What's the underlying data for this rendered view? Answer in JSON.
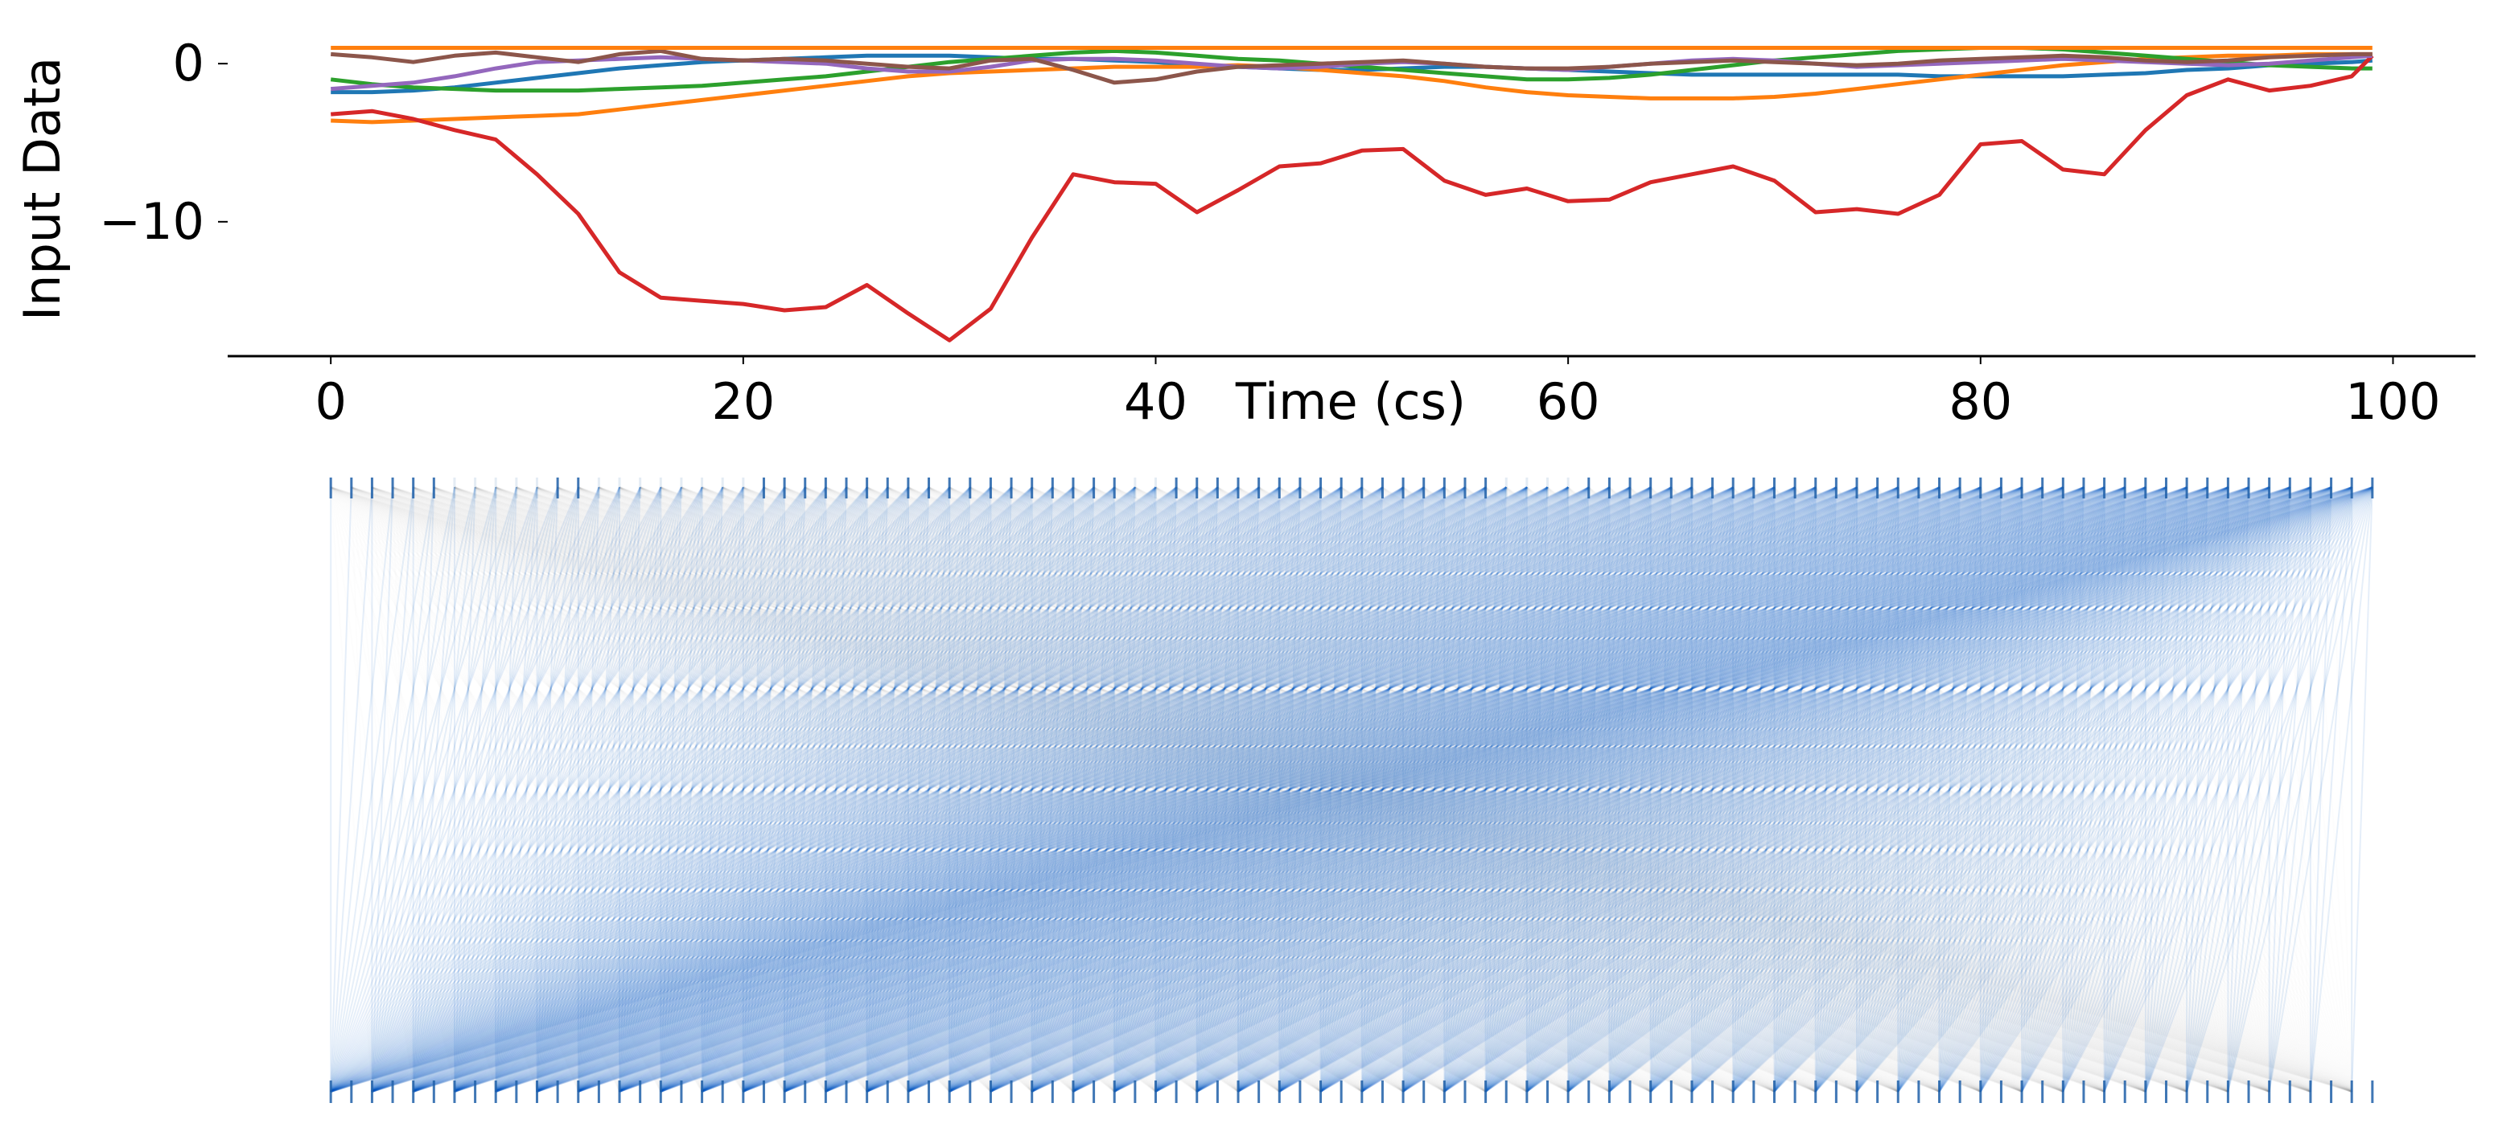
{
  "chart_data": [
    {
      "type": "line",
      "title": "",
      "xlabel": "Time (cs)",
      "ylabel": "Input Data",
      "xlim": [
        -5,
        104
      ],
      "ylim": [
        -18.5,
        2.5
      ],
      "xticks": [
        0,
        20,
        40,
        60,
        80,
        100
      ],
      "yticks": [
        0,
        -10
      ],
      "x_tick_labels": [
        "0",
        "20",
        "40",
        "60",
        "80",
        "100"
      ],
      "y_tick_labels": [
        "0",
        "−10"
      ],
      "x": [
        0,
        2,
        4,
        6,
        8,
        10,
        12,
        14,
        16,
        18,
        20,
        22,
        24,
        26,
        28,
        30,
        32,
        34,
        36,
        38,
        40,
        42,
        44,
        46,
        48,
        50,
        52,
        54,
        56,
        58,
        60,
        62,
        64,
        66,
        68,
        70,
        72,
        74,
        76,
        78,
        80,
        82,
        84,
        86,
        88,
        90,
        92,
        94,
        96,
        98,
        99
      ],
      "series": [
        {
          "color": "#1f77b4",
          "values": [
            -1.8,
            -1.8,
            -1.7,
            -1.5,
            -1.2,
            -0.9,
            -0.6,
            -0.3,
            -0.1,
            0.1,
            0.2,
            0.3,
            0.4,
            0.5,
            0.5,
            0.5,
            0.4,
            0.3,
            0.3,
            0.2,
            0.1,
            -0.1,
            -0.2,
            -0.3,
            -0.4,
            -0.4,
            -0.3,
            -0.2,
            -0.2,
            -0.3,
            -0.4,
            -0.5,
            -0.6,
            -0.7,
            -0.7,
            -0.7,
            -0.7,
            -0.7,
            -0.7,
            -0.8,
            -0.8,
            -0.8,
            -0.8,
            -0.7,
            -0.6,
            -0.4,
            -0.3,
            -0.1,
            0.0,
            0.1,
            0.2
          ]
        },
        {
          "color": "#ff7f0e",
          "values": [
            -3.6,
            -3.7,
            -3.6,
            -3.5,
            -3.4,
            -3.3,
            -3.2,
            -2.9,
            -2.6,
            -2.3,
            -2.0,
            -1.7,
            -1.4,
            -1.1,
            -0.8,
            -0.6,
            -0.5,
            -0.4,
            -0.3,
            -0.2,
            -0.2,
            -0.2,
            -0.1,
            -0.2,
            -0.4,
            -0.6,
            -0.8,
            -1.1,
            -1.5,
            -1.8,
            -2.0,
            -2.1,
            -2.2,
            -2.2,
            -2.2,
            -2.1,
            -1.9,
            -1.6,
            -1.3,
            -1.0,
            -0.7,
            -0.4,
            -0.1,
            0.1,
            0.3,
            0.4,
            0.5,
            0.5,
            0.6,
            0.6,
            0.6
          ]
        },
        {
          "color": "#2ca02c",
          "values": [
            -1.0,
            -1.3,
            -1.5,
            -1.6,
            -1.7,
            -1.7,
            -1.7,
            -1.6,
            -1.5,
            -1.4,
            -1.2,
            -1.0,
            -0.8,
            -0.5,
            -0.2,
            0.1,
            0.3,
            0.5,
            0.7,
            0.8,
            0.7,
            0.5,
            0.3,
            0.2,
            0.0,
            -0.2,
            -0.4,
            -0.6,
            -0.8,
            -1.0,
            -1.0,
            -0.9,
            -0.7,
            -0.4,
            -0.1,
            0.2,
            0.4,
            0.6,
            0.8,
            0.9,
            1.0,
            1.0,
            0.9,
            0.7,
            0.5,
            0.3,
            0.1,
            -0.1,
            -0.2,
            -0.3,
            -0.3
          ]
        },
        {
          "color": "#d62728",
          "values": [
            -3.2,
            -3.0,
            -3.5,
            -4.2,
            -4.8,
            -7.0,
            -9.5,
            -13.2,
            -14.8,
            -15.0,
            -15.2,
            -15.6,
            -15.4,
            -14.0,
            -15.8,
            -17.5,
            -15.5,
            -11.0,
            -7.0,
            -7.5,
            -7.6,
            -9.4,
            -8.0,
            -6.5,
            -6.3,
            -5.5,
            -5.4,
            -7.4,
            -8.3,
            -7.9,
            -8.7,
            -8.6,
            -7.5,
            -7.0,
            -6.5,
            -7.4,
            -9.4,
            -9.2,
            -9.5,
            -8.3,
            -5.1,
            -4.9,
            -6.7,
            -7.0,
            -4.2,
            -2.0,
            -1.0,
            -1.7,
            -1.4,
            -0.8,
            0.5
          ]
        },
        {
          "color": "#9467bd",
          "values": [
            -1.6,
            -1.4,
            -1.2,
            -0.8,
            -0.3,
            0.1,
            0.2,
            0.3,
            0.4,
            0.3,
            0.2,
            0.1,
            0.0,
            -0.3,
            -0.5,
            -0.5,
            -0.2,
            0.2,
            0.3,
            0.3,
            0.2,
            0.0,
            -0.2,
            -0.3,
            -0.2,
            0.0,
            0.1,
            0.0,
            -0.2,
            -0.3,
            -0.4,
            -0.2,
            0.0,
            0.2,
            0.3,
            0.2,
            0.0,
            -0.2,
            -0.1,
            0.0,
            0.1,
            0.2,
            0.3,
            0.2,
            0.1,
            0.0,
            -0.1,
            0.0,
            0.2,
            0.4,
            0.5
          ]
        },
        {
          "color": "#8c564b",
          "values": [
            0.6,
            0.4,
            0.1,
            0.5,
            0.7,
            0.4,
            0.1,
            0.6,
            0.8,
            0.3,
            0.2,
            0.3,
            0.2,
            0.0,
            -0.2,
            -0.3,
            0.2,
            0.3,
            -0.4,
            -1.2,
            -1.0,
            -0.5,
            -0.2,
            -0.1,
            0.0,
            0.1,
            0.2,
            0.0,
            -0.2,
            -0.3,
            -0.3,
            -0.2,
            0.0,
            0.1,
            0.2,
            0.1,
            0.0,
            -0.1,
            0.0,
            0.2,
            0.3,
            0.4,
            0.5,
            0.4,
            0.2,
            0.1,
            0.2,
            0.4,
            0.5,
            0.6,
            0.6
          ]
        },
        {
          "color": "#ff7f0e",
          "values": [
            1.0,
            1.0,
            1.0,
            1.0,
            1.0,
            1.0,
            1.0,
            1.0,
            1.0,
            1.0,
            1.0,
            1.0,
            1.0,
            1.0,
            1.0,
            1.0,
            1.0,
            1.0,
            1.0,
            1.0,
            1.0,
            1.0,
            1.0,
            1.0,
            1.0,
            1.0,
            1.0,
            1.0,
            1.0,
            1.0,
            1.0,
            1.0,
            1.0,
            1.0,
            1.0,
            1.0,
            1.0,
            1.0,
            1.0,
            1.0,
            1.0,
            1.0,
            1.0,
            1.0,
            1.0,
            1.0,
            1.0,
            1.0,
            1.0,
            1.0,
            1.0
          ]
        }
      ]
    },
    {
      "type": "heatmap",
      "title": "",
      "xlabel": "",
      "ylabel": "",
      "x_range": [
        0,
        99
      ],
      "nodes_per_row": 100,
      "grid": false,
      "colors": {
        "strong": "#0a5fc8",
        "weak": "#8a8a8a",
        "marker": "#1f5fa8"
      },
      "top_row_active": [
        0,
        1,
        2,
        3,
        4,
        5,
        11,
        12,
        21,
        22,
        23,
        24,
        25,
        26,
        27,
        28,
        29,
        30,
        31,
        32,
        33,
        34,
        35,
        36,
        37,
        38,
        41,
        42,
        43,
        44,
        45,
        46,
        47,
        48,
        49,
        50,
        51,
        52,
        53,
        54,
        55,
        56,
        61,
        62,
        63,
        64,
        65,
        66,
        67,
        68,
        69,
        70,
        71,
        72,
        73,
        74,
        75,
        76,
        77,
        78,
        79,
        80,
        81,
        82,
        83,
        84,
        85,
        86,
        87,
        88,
        89,
        90,
        91,
        92,
        93,
        94,
        95,
        96,
        97,
        98,
        99
      ]
    }
  ]
}
